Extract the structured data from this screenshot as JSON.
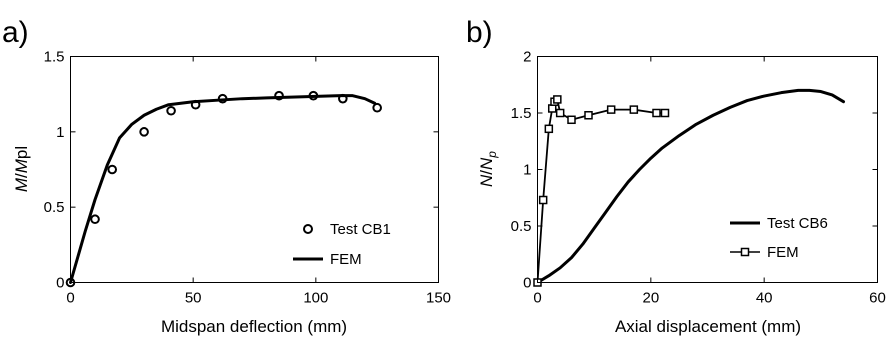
{
  "chart_data": [
    {
      "panel_label": "a)",
      "type": "line",
      "xlabel": "Midspan deflection (mm)",
      "ylabel": [
        "M",
        "/",
        "M",
        "pl"
      ],
      "xlim": [
        0,
        150
      ],
      "ylim": [
        0,
        1.5
      ],
      "xticks": [
        0,
        50,
        100,
        150
      ],
      "yticks": [
        0,
        0.5,
        1,
        1.5
      ],
      "xtick_labels": [
        "0",
        "50",
        "100",
        "150"
      ],
      "ytick_labels": [
        "0",
        "0.5",
        "1",
        "1.5"
      ],
      "grid": false,
      "legend_position": "bottom-right",
      "series": [
        {
          "name": "Test CB1",
          "style": "markers",
          "marker": "circle",
          "x": [
            0,
            10,
            17,
            30,
            41,
            51,
            62,
            85,
            99,
            111,
            125
          ],
          "y": [
            0,
            0.42,
            0.75,
            1.0,
            1.14,
            1.18,
            1.22,
            1.24,
            1.24,
            1.22,
            1.16
          ]
        },
        {
          "name": "FEM",
          "style": "line",
          "x": [
            0,
            3,
            6,
            10,
            15,
            20,
            25,
            30,
            35,
            40,
            50,
            60,
            70,
            80,
            90,
            100,
            110,
            115,
            120,
            124
          ],
          "y": [
            0,
            0.17,
            0.34,
            0.55,
            0.78,
            0.96,
            1.05,
            1.11,
            1.15,
            1.18,
            1.2,
            1.21,
            1.22,
            1.225,
            1.23,
            1.235,
            1.24,
            1.24,
            1.22,
            1.19
          ]
        }
      ]
    },
    {
      "panel_label": "b)",
      "type": "line",
      "xlabel": "Axial displacement (mm)",
      "ylabel": [
        "N",
        "/",
        "N",
        "p"
      ],
      "xlim": [
        0,
        60
      ],
      "ylim": [
        0,
        2
      ],
      "xticks": [
        0,
        20,
        40,
        60
      ],
      "yticks": [
        0,
        0.5,
        1,
        1.5,
        2
      ],
      "xtick_labels": [
        "0",
        "20",
        "40",
        "60"
      ],
      "ytick_labels": [
        "0",
        "0.5",
        "1",
        "1.5",
        "2"
      ],
      "grid": false,
      "legend_position": "bottom-right",
      "series": [
        {
          "name": "Test CB6",
          "style": "line",
          "x": [
            0,
            2,
            4,
            6,
            8,
            10,
            12,
            14,
            16,
            18,
            20,
            22,
            25,
            28,
            31,
            34,
            37,
            40,
            43,
            46,
            48,
            50,
            52,
            54
          ],
          "y": [
            0,
            0.06,
            0.13,
            0.22,
            0.34,
            0.48,
            0.62,
            0.76,
            0.89,
            1.0,
            1.1,
            1.19,
            1.3,
            1.4,
            1.48,
            1.55,
            1.61,
            1.65,
            1.68,
            1.7,
            1.7,
            1.69,
            1.66,
            1.6
          ]
        },
        {
          "name": "FEM",
          "style": "line-markers",
          "marker": "square",
          "x": [
            0,
            1,
            2,
            2.6,
            3,
            3.5,
            4,
            6,
            9,
            13,
            17,
            21,
            22.5
          ],
          "y": [
            0,
            0.73,
            1.36,
            1.54,
            1.6,
            1.62,
            1.5,
            1.44,
            1.48,
            1.53,
            1.53,
            1.5,
            1.5
          ]
        }
      ]
    }
  ]
}
